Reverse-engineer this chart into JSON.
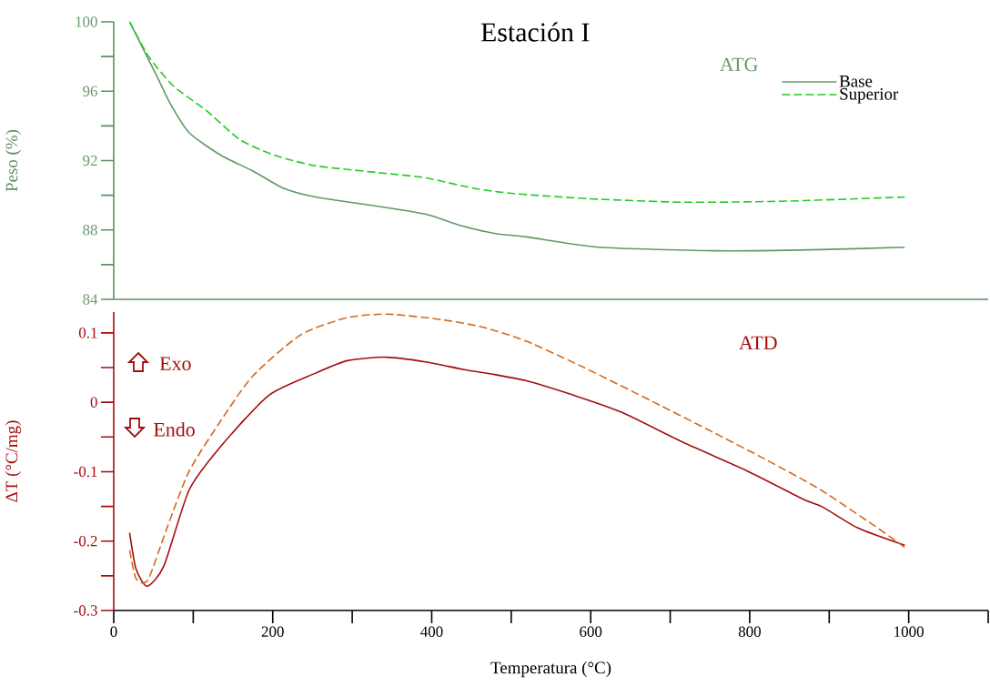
{
  "chart_data": [
    {
      "type": "line",
      "title": "Estación I",
      "ylabel": "Peso (%)",
      "annotations": [
        "ATG"
      ],
      "legend": "top right",
      "tick_labels": "y",
      "xlim": [
        0,
        1100
      ],
      "ylim": [
        84,
        100
      ],
      "yticks": [
        84,
        {
          "value": 86,
          "label": null
        },
        88,
        {
          "value": 90,
          "label": null
        },
        92,
        {
          "value": 94,
          "label": null
        },
        96,
        {
          "value": 98,
          "label": null
        },
        100
      ],
      "series": [
        {
          "name": "Base",
          "color": "#5e9a64",
          "line_style": "solid",
          "x": [
            20,
            32,
            56,
            71.5,
            95,
            135,
            175,
            214,
            254,
            334,
            393,
            433,
            479,
            519,
            611,
            757,
            876,
            995
          ],
          "values": [
            100,
            98.9,
            96.7,
            95.25,
            93.6,
            92.3,
            91.4,
            90.4,
            89.9,
            89.35,
            88.9,
            88.3,
            87.8,
            87.6,
            87.0,
            86.8,
            86.85,
            87.0
          ]
        },
        {
          "name": "Superior",
          "color": "#22cc22",
          "line_style": "dashed",
          "x": [
            20,
            44,
            75,
            116,
            159,
            203,
            254,
            334,
            393,
            453,
            503,
            598,
            717,
            836,
            936,
            995
          ],
          "values": [
            100,
            98.0,
            96.3,
            94.9,
            93.2,
            92.3,
            91.7,
            91.3,
            91.0,
            90.4,
            90.1,
            89.8,
            89.6,
            89.65,
            89.8,
            89.9
          ]
        }
      ]
    },
    {
      "type": "line",
      "xlabel": "Temperatura  (°C)",
      "ylabel": "ΔT (°C/mg)",
      "annotations": [
        "ATD",
        "Exo",
        "Endo"
      ],
      "xlim": [
        0,
        1100
      ],
      "ylim": [
        -0.3,
        0.13
      ],
      "xticks": [
        0,
        {
          "value": 100,
          "label": null
        },
        200,
        {
          "value": 300,
          "label": null
        },
        400,
        {
          "value": 500,
          "label": null
        },
        600,
        {
          "value": 700,
          "label": null
        },
        800,
        {
          "value": 900,
          "label": null
        },
        1000,
        {
          "value": 1100,
          "label": null
        }
      ],
      "yticks": [
        -0.3,
        {
          "value": -0.25,
          "label": null
        },
        -0.2,
        {
          "value": -0.15,
          "label": null
        },
        -0.1,
        {
          "value": -0.05,
          "label": null
        },
        0,
        {
          "value": 0.05,
          "label": null
        },
        0.1
      ],
      "series": [
        {
          "color": "#a50d0d",
          "line_style": "solid",
          "x": [
            20,
            28,
            42,
            63,
            95,
            135,
            195,
            254,
            294,
            342,
            394,
            441,
            479,
            519,
            579,
            638,
            717,
            797,
            868,
            892,
            936,
            995
          ],
          "values": [
            -0.188,
            -0.24,
            -0.265,
            -0.236,
            -0.126,
            -0.063,
            0.01,
            0.042,
            0.06,
            0.065,
            0.058,
            0.047,
            0.04,
            0.031,
            0.01,
            -0.014,
            -0.058,
            -0.099,
            -0.14,
            -0.151,
            -0.181,
            -0.206
          ]
        },
        {
          "color": "#d2691e",
          "line_style": "dashed",
          "x": [
            20,
            28,
            43,
            67,
            95,
            135,
            175,
            235,
            294,
            345,
            413,
            465,
            519,
            590,
            678,
            757,
            821,
            889,
            957,
            995
          ],
          "values": [
            -0.213,
            -0.254,
            -0.256,
            -0.181,
            -0.099,
            -0.026,
            0.038,
            0.097,
            0.122,
            0.127,
            0.119,
            0.108,
            0.088,
            0.051,
            0.001,
            -0.045,
            -0.083,
            -0.126,
            -0.178,
            -0.209
          ]
        }
      ]
    }
  ]
}
